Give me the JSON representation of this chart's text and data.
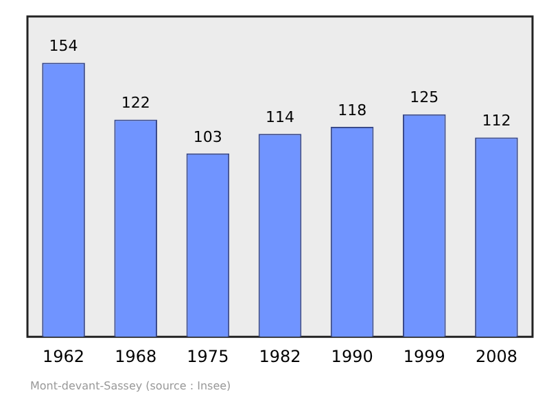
{
  "chart_data": {
    "type": "bar",
    "categories": [
      "1962",
      "1968",
      "1975",
      "1982",
      "1990",
      "1999",
      "2008"
    ],
    "values": [
      154,
      122,
      103,
      114,
      118,
      125,
      112
    ],
    "color": "#7094ff",
    "relative": false,
    "data_labels": true,
    "grid": false,
    "legend": false,
    "annotations": [
      "Mont-devant-Sassey    (source : Insee)"
    ]
  }
}
